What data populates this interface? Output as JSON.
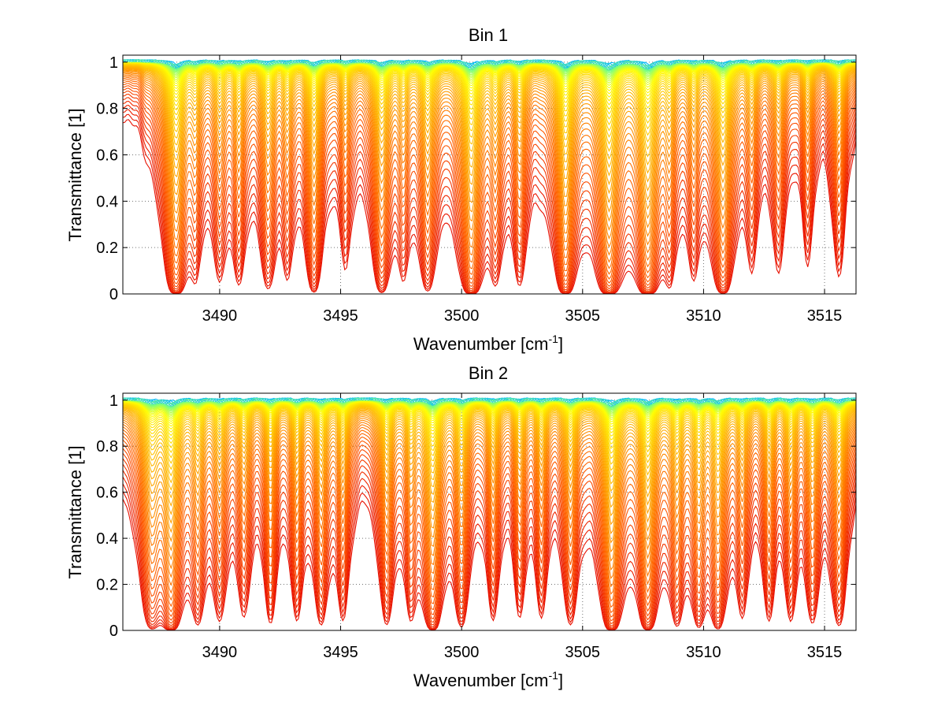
{
  "chart_data": [
    {
      "type": "line",
      "title": "Bin 1",
      "xlabel": "Wavenumber [cm",
      "xlabel_sup": "-1",
      "xlabel_close": "]",
      "ylabel": "Transmittance [1]",
      "xlim": [
        3486,
        3516.3
      ],
      "ylim": [
        0,
        1.03
      ],
      "xticks": [
        3490,
        3495,
        3500,
        3505,
        3510,
        3515
      ],
      "xtick_labels": [
        "3490",
        "3495",
        "3500",
        "3505",
        "3510",
        "3515"
      ],
      "yticks": [
        0,
        0.2,
        0.4,
        0.6,
        0.8,
        1
      ],
      "ytick_labels": [
        "0",
        "0.2",
        "0.4",
        "0.6",
        "0.8",
        "1"
      ],
      "grid": true,
      "series_count": 60,
      "colormap": [
        "#00b7ff",
        "#7cff7c",
        "#ffff00",
        "#ffd000",
        "#ff9a00",
        "#ff5a00",
        "#e81000"
      ],
      "lines": [
        {
          "center": 3488.2,
          "width": 0.28,
          "strength": 1.2
        },
        {
          "center": 3489.0,
          "width": 0.2,
          "strength": 0.35
        },
        {
          "center": 3490.0,
          "width": 0.22,
          "strength": 0.4
        },
        {
          "center": 3490.8,
          "width": 0.22,
          "strength": 0.45
        },
        {
          "center": 3492.0,
          "width": 0.25,
          "strength": 0.55
        },
        {
          "center": 3492.8,
          "width": 0.2,
          "strength": 0.35
        },
        {
          "center": 3493.9,
          "width": 0.24,
          "strength": 0.75
        },
        {
          "center": 3495.2,
          "width": 0.2,
          "strength": 0.3
        },
        {
          "center": 3496.7,
          "width": 0.26,
          "strength": 0.8
        },
        {
          "center": 3497.6,
          "width": 0.2,
          "strength": 0.35
        },
        {
          "center": 3498.6,
          "width": 0.25,
          "strength": 0.65
        },
        {
          "center": 3500.4,
          "width": 0.28,
          "strength": 1.3
        },
        {
          "center": 3501.4,
          "width": 0.22,
          "strength": 0.4
        },
        {
          "center": 3502.4,
          "width": 0.22,
          "strength": 0.45
        },
        {
          "center": 3504.3,
          "width": 0.26,
          "strength": 1.2
        },
        {
          "center": 3506.1,
          "width": 0.3,
          "strength": 1.4
        },
        {
          "center": 3507.7,
          "width": 0.3,
          "strength": 1.35
        },
        {
          "center": 3508.6,
          "width": 0.2,
          "strength": 0.4
        },
        {
          "center": 3509.6,
          "width": 0.2,
          "strength": 0.35
        },
        {
          "center": 3510.8,
          "width": 0.28,
          "strength": 1.0
        },
        {
          "center": 3512.0,
          "width": 0.2,
          "strength": 0.3
        },
        {
          "center": 3513.1,
          "width": 0.22,
          "strength": 0.35
        },
        {
          "center": 3514.3,
          "width": 0.2,
          "strength": 0.3
        },
        {
          "center": 3515.6,
          "width": 0.22,
          "strength": 0.4
        }
      ]
    },
    {
      "type": "line",
      "title": "Bin 2",
      "xlabel": "Wavenumber [cm",
      "xlabel_sup": "-1",
      "xlabel_close": "]",
      "ylabel": "Transmittance [1]",
      "xlim": [
        3486,
        3516.3
      ],
      "ylim": [
        0,
        1.03
      ],
      "xticks": [
        3490,
        3495,
        3500,
        3505,
        3510,
        3515
      ],
      "xtick_labels": [
        "3490",
        "3495",
        "3500",
        "3505",
        "3510",
        "3515"
      ],
      "yticks": [
        0,
        0.2,
        0.4,
        0.6,
        0.8,
        1
      ],
      "ytick_labels": [
        "0",
        "0.2",
        "0.4",
        "0.6",
        "0.8",
        "1"
      ],
      "grid": true,
      "series_count": 60,
      "colormap": [
        "#00b7ff",
        "#7cff7c",
        "#ffff00",
        "#ffd000",
        "#ff9a00",
        "#ff5a00",
        "#e81000"
      ],
      "lines": [
        {
          "center": 3487.2,
          "width": 0.3,
          "strength": 0.7
        },
        {
          "center": 3488.0,
          "width": 0.28,
          "strength": 1.1
        },
        {
          "center": 3489.1,
          "width": 0.22,
          "strength": 0.5
        },
        {
          "center": 3490.0,
          "width": 0.22,
          "strength": 0.45
        },
        {
          "center": 3491.0,
          "width": 0.22,
          "strength": 0.4
        },
        {
          "center": 3492.1,
          "width": 0.2,
          "strength": 0.5
        },
        {
          "center": 3493.2,
          "width": 0.2,
          "strength": 0.45
        },
        {
          "center": 3494.2,
          "width": 0.22,
          "strength": 0.55
        },
        {
          "center": 3495.1,
          "width": 0.2,
          "strength": 0.45
        },
        {
          "center": 3496.9,
          "width": 0.22,
          "strength": 0.55
        },
        {
          "center": 3497.9,
          "width": 0.2,
          "strength": 0.4
        },
        {
          "center": 3498.8,
          "width": 0.26,
          "strength": 1.0
        },
        {
          "center": 3500.0,
          "width": 0.22,
          "strength": 0.6
        },
        {
          "center": 3501.3,
          "width": 0.2,
          "strength": 0.45
        },
        {
          "center": 3502.4,
          "width": 0.2,
          "strength": 0.4
        },
        {
          "center": 3503.3,
          "width": 0.2,
          "strength": 0.4
        },
        {
          "center": 3504.5,
          "width": 0.22,
          "strength": 0.55
        },
        {
          "center": 3506.2,
          "width": 0.26,
          "strength": 1.2
        },
        {
          "center": 3507.7,
          "width": 0.26,
          "strength": 1.0
        },
        {
          "center": 3508.9,
          "width": 0.22,
          "strength": 0.55
        },
        {
          "center": 3509.8,
          "width": 0.22,
          "strength": 0.6
        },
        {
          "center": 3510.6,
          "width": 0.24,
          "strength": 0.75
        },
        {
          "center": 3511.6,
          "width": 0.2,
          "strength": 0.4
        },
        {
          "center": 3512.7,
          "width": 0.2,
          "strength": 0.45
        },
        {
          "center": 3513.6,
          "width": 0.2,
          "strength": 0.45
        },
        {
          "center": 3514.5,
          "width": 0.22,
          "strength": 0.5
        },
        {
          "center": 3515.6,
          "width": 0.24,
          "strength": 0.6
        }
      ]
    }
  ]
}
